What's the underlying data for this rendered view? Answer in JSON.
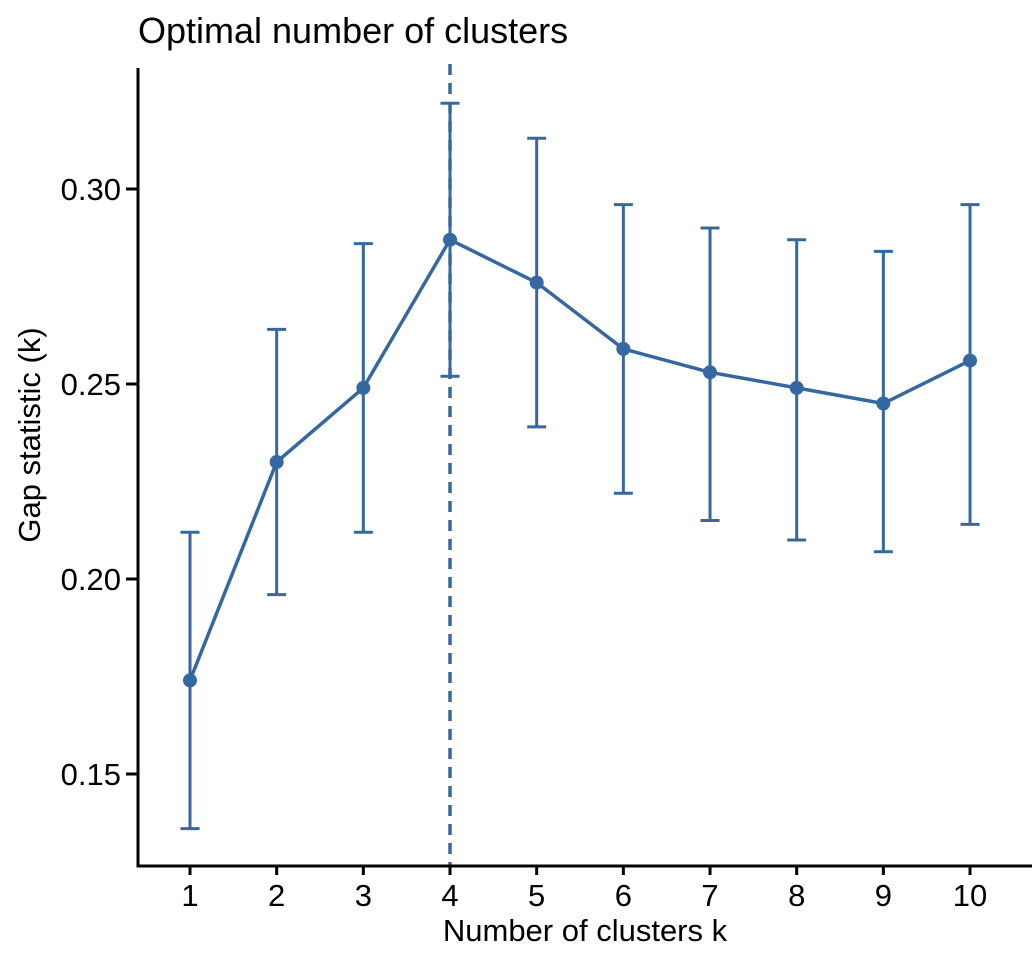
{
  "figure": {
    "title": "Optimal number of clusters",
    "x_axis_label": "Number of clusters k",
    "y_axis_label": "Gap statistic (k)"
  },
  "chart_data": {
    "type": "line",
    "title": "Optimal number of clusters",
    "xlabel": "Number of clusters k",
    "ylabel": "Gap statistic (k)",
    "x": [
      1,
      2,
      3,
      4,
      5,
      6,
      7,
      8,
      9,
      10
    ],
    "series": [
      {
        "name": "Gap statistic",
        "values": [
          0.174,
          0.23,
          0.249,
          0.287,
          0.276,
          0.259,
          0.253,
          0.249,
          0.245,
          0.256
        ],
        "err_low": [
          0.136,
          0.196,
          0.212,
          0.252,
          0.239,
          0.222,
          0.215,
          0.21,
          0.207,
          0.214
        ],
        "err_high": [
          0.212,
          0.264,
          0.286,
          0.322,
          0.313,
          0.296,
          0.29,
          0.287,
          0.284,
          0.296
        ]
      }
    ],
    "optimal_k": 4,
    "vline": {
      "x": 4,
      "style": "dashed"
    },
    "x_ticks": [
      1,
      2,
      3,
      4,
      5,
      6,
      7,
      8,
      9,
      10
    ],
    "x_tick_labels": [
      "1",
      "2",
      "3",
      "4",
      "5",
      "6",
      "7",
      "8",
      "9",
      "10"
    ],
    "y_ticks": [
      0.15,
      0.2,
      0.25,
      0.3
    ],
    "y_tick_labels": [
      "0.15",
      "0.20",
      "0.25",
      "0.30"
    ],
    "ylim": [
      0.126,
      0.332
    ],
    "xlim": [
      0.4,
      10.7
    ],
    "grid": false,
    "legend": false,
    "marker": "circle",
    "error_bars": true,
    "colors": {
      "series": "#35689E",
      "axis": "#000000",
      "text": "#000000",
      "background": "#FFFFFF"
    }
  }
}
